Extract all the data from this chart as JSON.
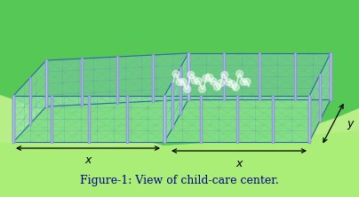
{
  "title": "Figure-1: View of child-care center.",
  "title_color": "#00008B",
  "title_fontsize": 9,
  "bg_color": "#ffffff",
  "label_x": "x",
  "label_y": "y"
}
